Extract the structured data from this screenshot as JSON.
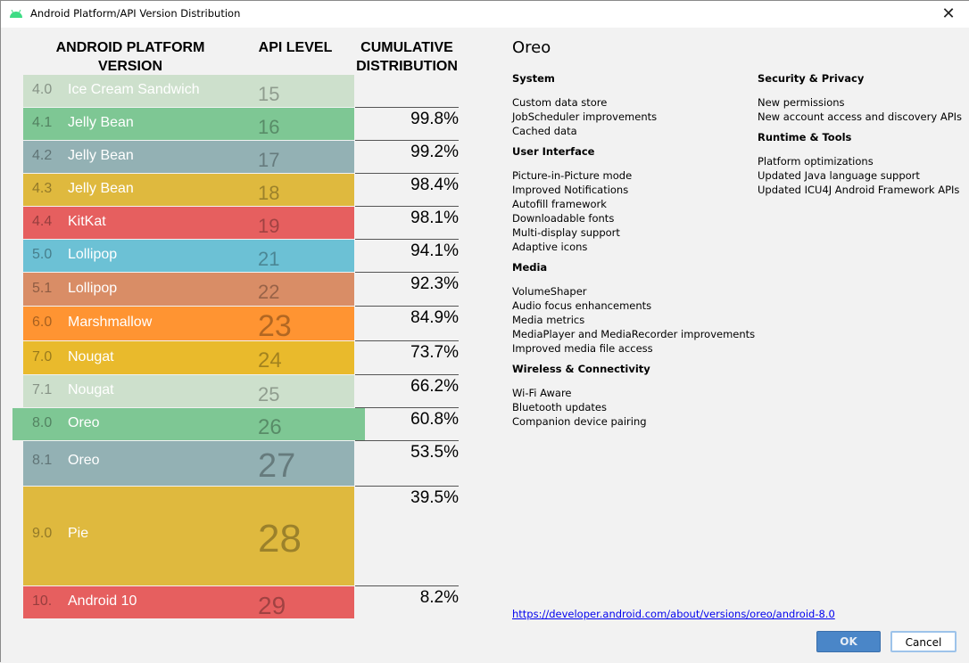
{
  "window": {
    "title": "Android Platform/API Version Distribution",
    "close_icon": "close-icon"
  },
  "table": {
    "headers": {
      "version": "ANDROID PLATFORM VERSION",
      "api": "API LEVEL",
      "cumulative": "CUMULATIVE DISTRIBUTION"
    },
    "rows": [
      {
        "version": "4.0",
        "name": "Ice Cream Sandwich",
        "api": "15",
        "cumulative": "",
        "color": "#cde0cc"
      },
      {
        "version": "4.1",
        "name": "Jelly Bean",
        "api": "16",
        "cumulative": "99.8%",
        "color": "#7ec794"
      },
      {
        "version": "4.2",
        "name": "Jelly Bean",
        "api": "17",
        "cumulative": "99.2%",
        "color": "#93b1b4"
      },
      {
        "version": "4.3",
        "name": "Jelly Bean",
        "api": "18",
        "cumulative": "98.4%",
        "color": "#dfb93e"
      },
      {
        "version": "4.4",
        "name": "KitKat",
        "api": "19",
        "cumulative": "98.1%",
        "color": "#e65f5f"
      },
      {
        "version": "5.0",
        "name": "Lollipop",
        "api": "21",
        "cumulative": "94.1%",
        "color": "#6cc1d5"
      },
      {
        "version": "5.1",
        "name": "Lollipop",
        "api": "22",
        "cumulative": "92.3%",
        "color": "#d98d66"
      },
      {
        "version": "6.0",
        "name": "Marshmallow",
        "api": "23",
        "cumulative": "84.9%",
        "color": "#ff9432"
      },
      {
        "version": "7.0",
        "name": "Nougat",
        "api": "24",
        "cumulative": "73.7%",
        "color": "#e9ba2c"
      },
      {
        "version": "7.1",
        "name": "Nougat",
        "api": "25",
        "cumulative": "66.2%",
        "color": "#cde0cc"
      },
      {
        "version": "8.0",
        "name": "Oreo",
        "api": "26",
        "cumulative": "60.8%",
        "color": "#7ec794",
        "selected": true
      },
      {
        "version": "8.1",
        "name": "Oreo",
        "api": "27",
        "cumulative": "53.5%",
        "color": "#93b1b4"
      },
      {
        "version": "9.0",
        "name": "Pie",
        "api": "28",
        "cumulative": "39.5%",
        "color": "#dfb93e"
      },
      {
        "version": "10.",
        "name": "Android 10",
        "api": "29",
        "cumulative": "8.2%",
        "color": "#e65f5f"
      }
    ]
  },
  "details": {
    "title": "Oreo",
    "left": [
      {
        "title": "System",
        "items": [
          "Custom data store",
          "JobScheduler improvements",
          "Cached data"
        ]
      },
      {
        "title": "User Interface",
        "items": [
          "Picture-in-Picture mode",
          "Improved Notifications",
          "Autofill framework",
          "Downloadable fonts",
          "Multi-display support",
          "Adaptive icons"
        ]
      },
      {
        "title": "Media",
        "items": [
          "VolumeShaper",
          "Audio focus enhancements",
          "Media metrics",
          "MediaPlayer and MediaRecorder improvements",
          "Improved media file access"
        ]
      },
      {
        "title": "Wireless & Connectivity",
        "items": [
          "Wi-Fi Aware",
          "Bluetooth updates",
          "Companion device pairing"
        ]
      }
    ],
    "right": [
      {
        "title": "Security & Privacy",
        "items": [
          "New permissions",
          "New account access and discovery APIs"
        ]
      },
      {
        "title": "Runtime & Tools",
        "items": [
          "Platform optimizations",
          "Updated Java language support",
          "Updated ICU4J Android Framework APIs"
        ]
      }
    ],
    "link": "https://developer.android.com/about/versions/oreo/android-8.0"
  },
  "buttons": {
    "ok": "OK",
    "cancel": "Cancel"
  }
}
